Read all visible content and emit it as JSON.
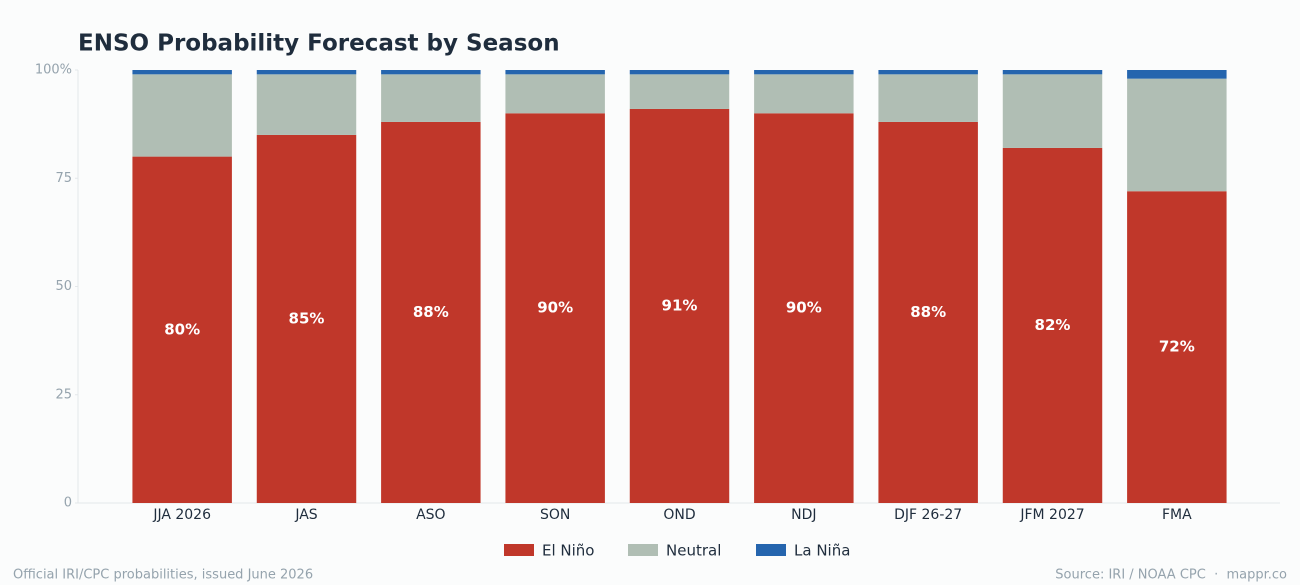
{
  "chart_data": {
    "type": "stacked-bar",
    "title": "ENSO Probability Forecast by Season",
    "categories": [
      "JJA 2026",
      "JAS",
      "ASO",
      "SON",
      "OND",
      "NDJ",
      "DJF 26-27",
      "JFM 2027",
      "FMA"
    ],
    "series": [
      {
        "name": "El Niño",
        "color": "#c0372a",
        "values": [
          80,
          85,
          88,
          90,
          91,
          90,
          88,
          82,
          72
        ],
        "value_labels": [
          "80%",
          "85%",
          "88%",
          "90%",
          "91%",
          "90%",
          "88%",
          "82%",
          "72%"
        ]
      },
      {
        "name": "Neutral",
        "color": "#b0beb4",
        "values": [
          19,
          14,
          11,
          9,
          8,
          9,
          11,
          17,
          26
        ]
      },
      {
        "name": "La Niña",
        "color": "#2565ae",
        "values": [
          1,
          1,
          1,
          1,
          1,
          1,
          1,
          1,
          2
        ]
      }
    ],
    "ylim": [
      0,
      100
    ],
    "yticks": [
      0,
      25,
      50,
      75,
      {
        "value": 100,
        "label": "100%"
      }
    ],
    "legend": "bottom",
    "footnote": "Official IRI/CPC probabilities, issued June 2026",
    "source": "Source: IRI / NOAA CPC  ·  mappr.co"
  }
}
